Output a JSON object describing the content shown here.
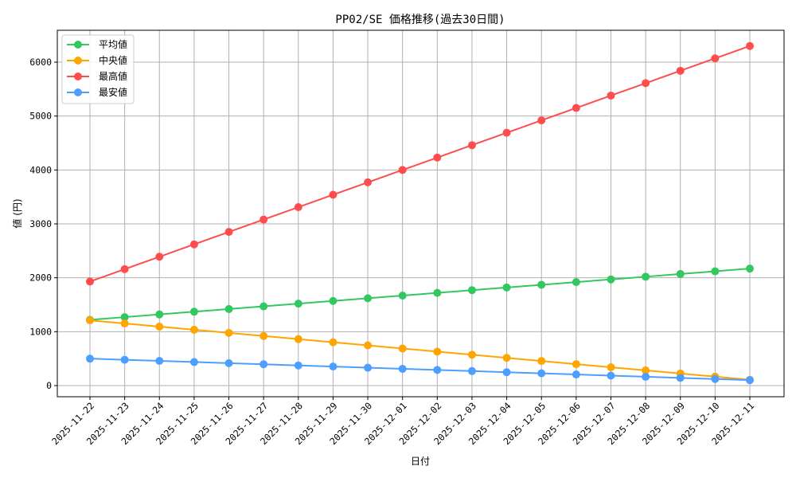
{
  "chart_data": {
    "type": "line",
    "title": "PP02/SE 価格推移(過去30日間)",
    "xlabel": "日付",
    "ylabel": "値 (円)",
    "ylim": [
      -210,
      6620
    ],
    "yticks": [
      0,
      1000,
      2000,
      3000,
      4000,
      5000,
      6000
    ],
    "grid": true,
    "legend_position": "upper left",
    "categories": [
      "2025-11-22",
      "2025-11-23",
      "2025-11-24",
      "2025-11-25",
      "2025-11-26",
      "2025-11-27",
      "2025-11-28",
      "2025-11-29",
      "2025-11-30",
      "2025-12-01",
      "2025-12-02",
      "2025-12-03",
      "2025-12-04",
      "2025-12-05",
      "2025-12-06",
      "2025-12-07",
      "2025-12-08",
      "2025-12-09",
      "2025-12-10",
      "2025-12-11"
    ],
    "series": [
      {
        "name": "平均値",
        "color": "#33c760",
        "values": [
          1220,
          1270,
          1320,
          1370,
          1420,
          1470,
          1520,
          1570,
          1620,
          1670,
          1720,
          1770,
          1820,
          1870,
          1920,
          1970,
          2020,
          2070,
          2120,
          2170
        ]
      },
      {
        "name": "中央値",
        "color": "#ffa500",
        "values": [
          1210,
          1152,
          1094,
          1036,
          978,
          920,
          862,
          804,
          746,
          688,
          630,
          572,
          514,
          456,
          398,
          340,
          282,
          224,
          166,
          108
        ]
      },
      {
        "name": "最高値",
        "color": "#ff4d4d",
        "values": [
          1930,
          2160,
          2390,
          2620,
          2850,
          3080,
          3310,
          3540,
          3770,
          4000,
          4230,
          4460,
          4690,
          4920,
          5150,
          5380,
          5610,
          5840,
          6070,
          6300
        ]
      },
      {
        "name": "最安値",
        "color": "#4d9fff",
        "values": [
          500,
          479,
          458,
          437,
          416,
          395,
          374,
          353,
          332,
          311,
          290,
          269,
          248,
          227,
          206,
          185,
          164,
          143,
          122,
          101
        ]
      }
    ]
  },
  "colors": {
    "grid": "#b0b0b0",
    "axis": "#000000",
    "legend_border": "#cccccc"
  }
}
